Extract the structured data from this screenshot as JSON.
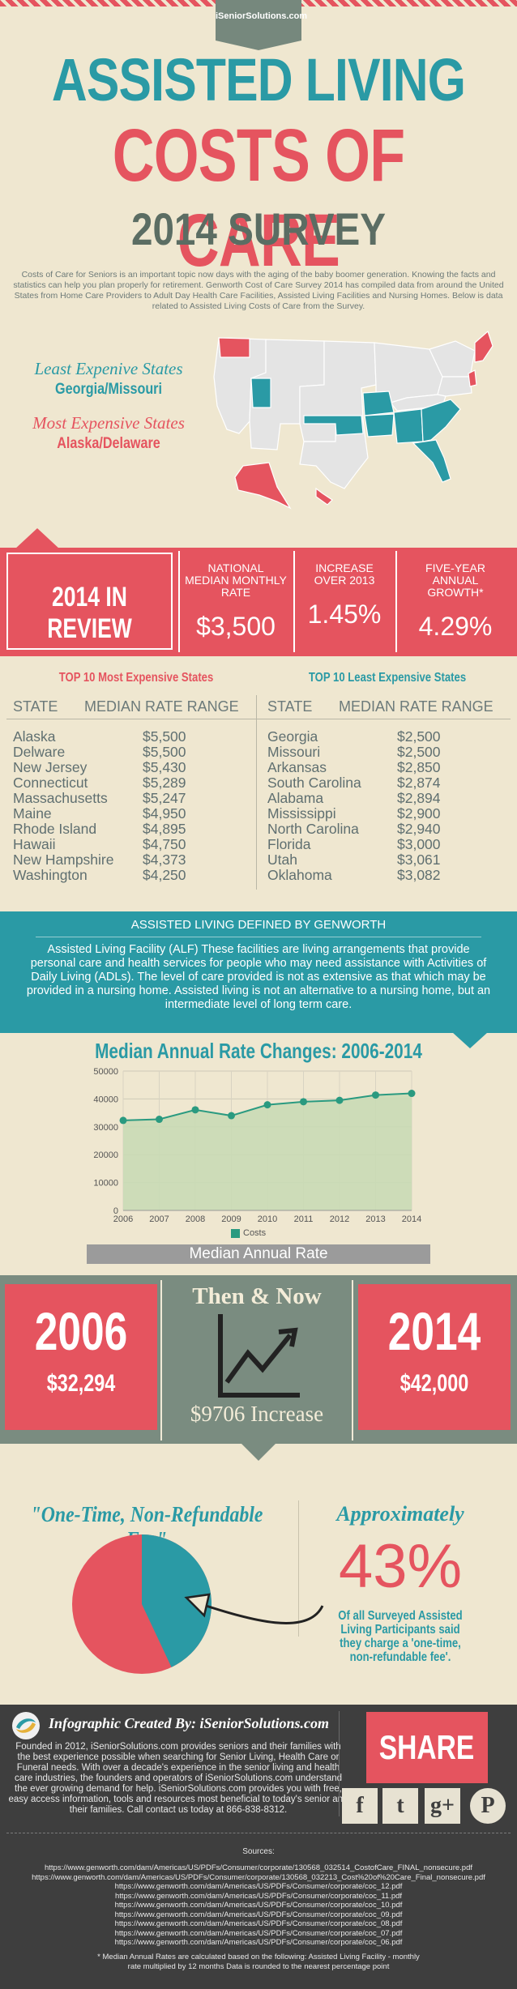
{
  "header": {
    "site": "iSeniorSolutions.com",
    "title_line1": "ASSISTED LIVING",
    "title_line2": "COSTS OF CARE",
    "title_line3": "2014 SURVEY",
    "intro": "Costs of Care for Seniors is an important topic now days with the aging of the baby boomer generation.  Knowing the facts and statistics can help you plan properly for retirement.  Genworth Cost of Care Survey 2014 has compiled data from around the United States from Home Care Providers to Adult Day Health Care Facilities, Assisted Living Facilities and Nursing Homes.  Below is data related to Assisted Living Costs of Care from the Survey."
  },
  "map": {
    "least_heading": "Least Expenive States",
    "least_value": "Georgia/Missouri",
    "most_heading": "Most Expensive States",
    "most_value": "Alaska/Delaware",
    "colors": {
      "cheap": "#2a9aa5",
      "expensive": "#e5545f",
      "other": "#e4e4e4"
    }
  },
  "review": {
    "title": "2014 IN REVIEW",
    "stats": [
      {
        "label": "NATIONAL MEDIAN MONTHLY RATE",
        "value": "$3,500"
      },
      {
        "label": "INCREASE OVER 2013",
        "value": "1.45%"
      },
      {
        "label": "FIVE-YEAR ANNUAL GROWTH*",
        "value": "4.29%"
      }
    ]
  },
  "top10": {
    "most_title": "TOP 10 Most Expensive States",
    "least_title": "TOP 10 Least Expensive States",
    "col_state": "STATE",
    "col_rate": "MEDIAN RATE RANGE",
    "most": [
      [
        "Alaska",
        "$5,500"
      ],
      [
        "Delware",
        "$5,500"
      ],
      [
        "New Jersey",
        "$5,430"
      ],
      [
        "Connecticut",
        "$5,289"
      ],
      [
        "Massachusetts",
        "$5,247"
      ],
      [
        "Maine",
        "$4,950"
      ],
      [
        "Rhode Island",
        "$4,895"
      ],
      [
        "Hawaii",
        "$4,750"
      ],
      [
        "New Hampshire",
        "$4,373"
      ],
      [
        "Washington",
        "$4,250"
      ]
    ],
    "least": [
      [
        "Georgia",
        "$2,500"
      ],
      [
        "Missouri",
        "$2,500"
      ],
      [
        "Arkansas",
        "$2,850"
      ],
      [
        "South Carolina",
        "$2,874"
      ],
      [
        "Alabama",
        "$2,894"
      ],
      [
        "Mississippi",
        "$2,900"
      ],
      [
        "North Carolina",
        "$2,940"
      ],
      [
        "Florida",
        "$3,000"
      ],
      [
        "Utah",
        "$3,061"
      ],
      [
        "Oklahoma",
        "$3,082"
      ]
    ]
  },
  "definition": {
    "title": "ASSISTED LIVING DEFINED BY GENWORTH",
    "text": "Assisted Living Facility (ALF) These facilities are living arrangements that provide personal care and health services for people who may need assistance with Activities of Daily Living (ADLs). The level of care provided is not as extensive as that which may be provided in a nursing home. Assisted living is not an alternative to a nursing home, but an intermediate level of long term care."
  },
  "chart_data": {
    "type": "area",
    "title": "Median Annual Rate Changes: 2006-2014",
    "x": [
      "2006",
      "2007",
      "2008",
      "2009",
      "2010",
      "2011",
      "2012",
      "2013",
      "2014"
    ],
    "series": [
      {
        "name": "Costs",
        "values": [
          32294,
          32700,
          36090,
          34000,
          37900,
          39000,
          39500,
          41400,
          42000
        ]
      }
    ],
    "ylim": [
      0,
      50000
    ],
    "yticks": [
      "0",
      "10000",
      "20000",
      "30000",
      "40000",
      "50000"
    ],
    "xlabel": "Median Annual Rate",
    "grid": true,
    "legend": "bottom",
    "color_fill": "#c9dab5",
    "color_line": "#2a9a80"
  },
  "then_now": {
    "title": "Then & Now",
    "year_then": "2006",
    "amount_then": "$32,294",
    "year_now": "2014",
    "amount_now": "$42,000",
    "increase": "$9706 Increase"
  },
  "fee": {
    "heading": "\"One-Time, Non-Refundable Fee\"",
    "approx": "Approximately",
    "percent": "43%",
    "percent_value": 43,
    "note": "Of all Surveyed Assisted Living Participants said they charge a 'one-time, non-refundable fee'."
  },
  "footer": {
    "created": "Infographic Created By: iSeniorSolutions.com",
    "about": "Founded in 2012, iSeniorSolutions.com  provides seniors and their families with the best experience possible when searching for Senior Living, Health Care or Funeral needs.  With over a decade's experience in the senior living and health care industries, the founders and operators of iSeniorSolutions.com understand the ever growing demand for help. iSeniorSolutions.com provides you with free, easy access information, tools and resources most beneficial to today's senior and their families. Call contact us today at 866-838-8312.",
    "share": "SHARE",
    "social": [
      "f",
      "t",
      "g+",
      "P"
    ],
    "sources_title": "Sources:",
    "sources": [
      "https://www.genworth.com/dam/Americas/US/PDFs/Consumer/corporate/130568_032514_CostofCare_FINAL_nonsecure.pdf",
      "https://www.genworth.com/dam/Americas/US/PDFs/Consumer/corporate/130568_032213_Cost%20of%20Care_Final_nonsecure.pdf",
      "https://www.genworth.com/dam/Americas/US/PDFs/Consumer/corporate/coc_12.pdf",
      "https://www.genworth.com/dam/Americas/US/PDFs/Consumer/corporate/coc_11.pdf",
      "https://www.genworth.com/dam/Americas/US/PDFs/Consumer/corporate/coc_10.pdf",
      "https://www.genworth.com/dam/Americas/US/PDFs/Consumer/corporate/coc_09.pdf",
      "https://www.genworth.com/dam/Americas/US/PDFs/Consumer/corporate/coc_08.pdf",
      "https://www.genworth.com/dam/Americas/US/PDFs/Consumer/corporate/coc_07.pdf",
      "https://www.genworth.com/dam/Americas/US/PDFs/Consumer/corporate/coc_06.pdf"
    ],
    "note": "* Median Annual Rates are calculated based on the following: Assisted Living Facility - monthly rate multiplied by 12 months Data is rounded to the nearest percentage point"
  }
}
